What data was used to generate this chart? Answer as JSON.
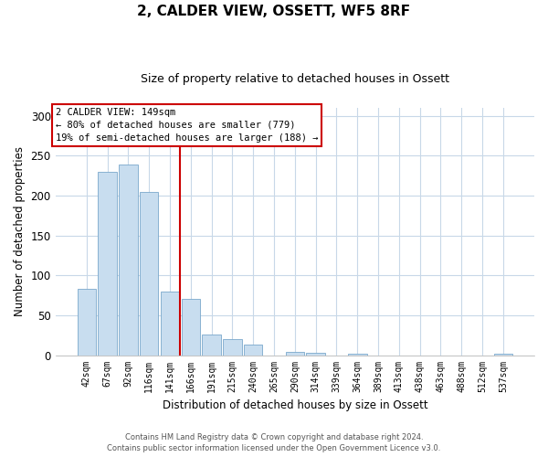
{
  "title": "2, CALDER VIEW, OSSETT, WF5 8RF",
  "subtitle": "Size of property relative to detached houses in Ossett",
  "xlabel": "Distribution of detached houses by size in Ossett",
  "ylabel": "Number of detached properties",
  "bar_labels": [
    "42sqm",
    "67sqm",
    "92sqm",
    "116sqm",
    "141sqm",
    "166sqm",
    "191sqm",
    "215sqm",
    "240sqm",
    "265sqm",
    "290sqm",
    "314sqm",
    "339sqm",
    "364sqm",
    "389sqm",
    "413sqm",
    "438sqm",
    "463sqm",
    "488sqm",
    "512sqm",
    "537sqm"
  ],
  "bar_values": [
    83,
    230,
    239,
    204,
    80,
    71,
    26,
    20,
    13,
    0,
    4,
    3,
    0,
    2,
    0,
    0,
    0,
    0,
    0,
    0,
    2
  ],
  "bar_color": "#c8ddef",
  "bar_edge_color": "#7aa8cc",
  "vline_x_idx": 4.5,
  "vline_color": "#cc0000",
  "ylim": [
    0,
    310
  ],
  "yticks": [
    0,
    50,
    100,
    150,
    200,
    250,
    300
  ],
  "annotation_lines": [
    "2 CALDER VIEW: 149sqm",
    "← 80% of detached houses are smaller (779)",
    "19% of semi-detached houses are larger (188) →"
  ],
  "annotation_box_color": "#ffffff",
  "annotation_box_edge": "#cc0000",
  "footnote1": "Contains HM Land Registry data © Crown copyright and database right 2024.",
  "footnote2": "Contains public sector information licensed under the Open Government Licence v3.0.",
  "background_color": "#ffffff",
  "grid_color": "#c8d8e8",
  "title_fontsize": 11,
  "subtitle_fontsize": 9
}
